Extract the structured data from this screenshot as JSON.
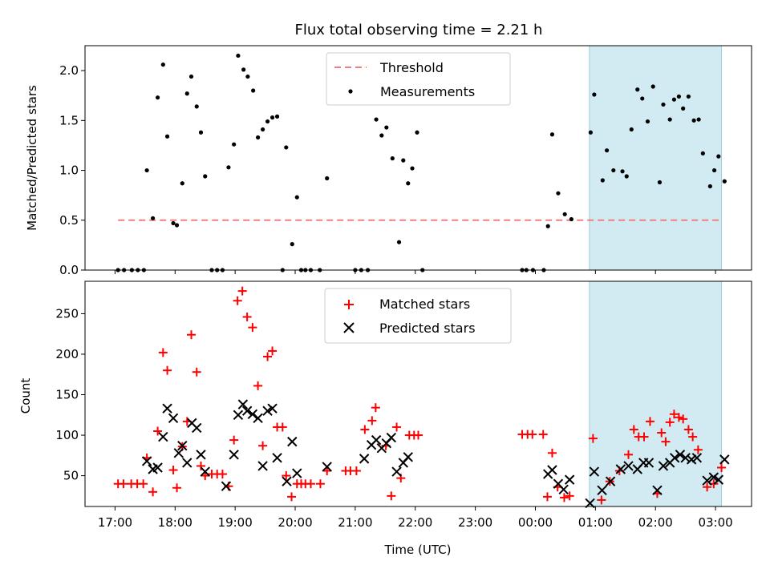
{
  "figure": {
    "title": "Flux total observing time = 2.21 h"
  },
  "chart_data": [
    {
      "type": "scatter",
      "panel": "top",
      "ylabel": "Matched/Predicted stars",
      "xlabel": "",
      "xlim": [
        -0.5,
        10.6
      ],
      "ylim": [
        0,
        2.25
      ],
      "yticks": [
        0.0,
        0.5,
        1.0,
        1.5,
        2.0
      ],
      "ytick_labels": [
        "0.0",
        "0.5",
        "1.0",
        "1.5",
        "2.0"
      ],
      "highlight_span": [
        7.9,
        10.1
      ],
      "threshold": {
        "name": "Threshold",
        "value": 0.5,
        "x_range": [
          0.05,
          10.1
        ],
        "color": "#f08080"
      },
      "legend": {
        "position": "top-center",
        "entries": [
          "Threshold",
          "Measurements"
        ]
      },
      "series": [
        {
          "name": "Measurements",
          "color": "#000000",
          "marker": "dot",
          "points": [
            [
              0.05,
              0
            ],
            [
              0.15,
              0
            ],
            [
              0.28,
              0
            ],
            [
              0.38,
              0
            ],
            [
              0.48,
              0
            ],
            [
              0.53,
              1.0
            ],
            [
              0.63,
              0.52
            ],
            [
              0.71,
              1.73
            ],
            [
              0.8,
              2.06
            ],
            [
              0.87,
              1.34
            ],
            [
              0.97,
              0.47
            ],
            [
              1.03,
              0.45
            ],
            [
              1.12,
              0.87
            ],
            [
              1.2,
              1.77
            ],
            [
              1.27,
              1.94
            ],
            [
              1.36,
              1.64
            ],
            [
              1.43,
              1.38
            ],
            [
              1.5,
              0.94
            ],
            [
              1.61,
              0
            ],
            [
              1.7,
              0
            ],
            [
              1.79,
              0
            ],
            [
              1.89,
              1.03
            ],
            [
              1.98,
              1.26
            ],
            [
              2.05,
              2.15
            ],
            [
              2.14,
              2.01
            ],
            [
              2.21,
              1.94
            ],
            [
              2.3,
              1.8
            ],
            [
              2.38,
              1.33
            ],
            [
              2.46,
              1.41
            ],
            [
              2.54,
              1.49
            ],
            [
              2.62,
              1.53
            ],
            [
              2.7,
              1.54
            ],
            [
              2.79,
              0
            ],
            [
              2.85,
              1.23
            ],
            [
              2.95,
              0.26
            ],
            [
              3.03,
              0.73
            ],
            [
              3.1,
              0
            ],
            [
              3.17,
              0
            ],
            [
              3.26,
              0
            ],
            [
              3.41,
              0
            ],
            [
              3.53,
              0.92
            ],
            [
              4.0,
              0
            ],
            [
              4.1,
              0
            ],
            [
              4.21,
              0
            ],
            [
              4.35,
              1.51
            ],
            [
              4.44,
              1.35
            ],
            [
              4.52,
              1.43
            ],
            [
              4.62,
              1.12
            ],
            [
              4.73,
              0.28
            ],
            [
              4.8,
              1.1
            ],
            [
              4.88,
              0.87
            ],
            [
              4.95,
              1.02
            ],
            [
              5.03,
              1.38
            ],
            [
              5.12,
              0
            ],
            [
              6.78,
              0
            ],
            [
              6.85,
              0
            ],
            [
              6.96,
              0
            ],
            [
              7.14,
              0
            ],
            [
              7.21,
              0.44
            ],
            [
              7.28,
              1.36
            ],
            [
              7.38,
              0.77
            ],
            [
              7.49,
              0.56
            ],
            [
              7.6,
              0.51
            ],
            [
              7.92,
              1.38
            ],
            [
              7.98,
              1.76
            ],
            [
              8.12,
              0.9
            ],
            [
              8.19,
              1.2
            ],
            [
              8.3,
              1.0
            ],
            [
              8.45,
              0.99
            ],
            [
              8.52,
              0.94
            ],
            [
              8.6,
              1.41
            ],
            [
              8.7,
              1.81
            ],
            [
              8.78,
              1.72
            ],
            [
              8.87,
              1.49
            ],
            [
              8.96,
              1.84
            ],
            [
              9.07,
              0.88
            ],
            [
              9.13,
              1.66
            ],
            [
              9.24,
              1.51
            ],
            [
              9.31,
              1.71
            ],
            [
              9.39,
              1.74
            ],
            [
              9.46,
              1.62
            ],
            [
              9.55,
              1.74
            ],
            [
              9.64,
              1.5
            ],
            [
              9.72,
              1.51
            ],
            [
              9.79,
              1.17
            ],
            [
              9.91,
              0.84
            ],
            [
              9.98,
              1.0
            ],
            [
              10.05,
              1.14
            ],
            [
              10.15,
              0.89
            ]
          ]
        }
      ]
    },
    {
      "type": "scatter",
      "panel": "bottom",
      "xlabel": "Time (UTC)",
      "ylabel": "Count",
      "xlim": [
        -0.5,
        10.6
      ],
      "ylim": [
        12,
        290
      ],
      "yticks": [
        50,
        100,
        150,
        200,
        250
      ],
      "ytick_labels": [
        "50",
        "100",
        "150",
        "200",
        "250"
      ],
      "xticks": [
        0,
        1,
        2,
        3,
        4,
        5,
        6,
        7,
        8,
        9,
        10
      ],
      "xtick_labels": [
        "17:00",
        "18:00",
        "19:00",
        "20:00",
        "21:00",
        "22:00",
        "23:00",
        "00:00",
        "01:00",
        "02:00",
        "03:00"
      ],
      "highlight_span": [
        7.9,
        10.1
      ],
      "legend": {
        "position": "top-center",
        "entries": [
          "Matched stars",
          "Predicted stars"
        ]
      },
      "series": [
        {
          "name": "Matched stars",
          "color": "#ff0000",
          "marker": "plus",
          "points": [
            [
              0.05,
              40
            ],
            [
              0.14,
              40
            ],
            [
              0.27,
              40
            ],
            [
              0.37,
              40
            ],
            [
              0.47,
              40
            ],
            [
              0.53,
              72
            ],
            [
              0.63,
              30
            ],
            [
              0.71,
              105
            ],
            [
              0.8,
              202
            ],
            [
              0.87,
              180
            ],
            [
              0.97,
              57
            ],
            [
              1.03,
              35
            ],
            [
              1.12,
              86
            ],
            [
              1.2,
              117
            ],
            [
              1.27,
              224
            ],
            [
              1.36,
              178
            ],
            [
              1.43,
              62
            ],
            [
              1.5,
              50
            ],
            [
              1.61,
              52
            ],
            [
              1.7,
              52
            ],
            [
              1.79,
              52
            ],
            [
              1.89,
              37
            ],
            [
              1.98,
              94
            ],
            [
              2.04,
              266
            ],
            [
              2.12,
              278
            ],
            [
              2.2,
              246
            ],
            [
              2.29,
              233
            ],
            [
              2.38,
              161
            ],
            [
              2.46,
              87
            ],
            [
              2.54,
              197
            ],
            [
              2.62,
              204
            ],
            [
              2.7,
              110
            ],
            [
              2.79,
              110
            ],
            [
              2.85,
              50
            ],
            [
              2.94,
              24
            ],
            [
              3.03,
              40
            ],
            [
              3.1,
              40
            ],
            [
              3.17,
              40
            ],
            [
              3.26,
              40
            ],
            [
              3.42,
              40
            ],
            [
              3.53,
              56
            ],
            [
              3.84,
              56
            ],
            [
              3.92,
              56
            ],
            [
              4.02,
              56
            ],
            [
              4.16,
              107
            ],
            [
              4.28,
              118
            ],
            [
              4.34,
              134
            ],
            [
              4.51,
              87
            ],
            [
              4.6,
              25
            ],
            [
              4.69,
              110
            ],
            [
              4.76,
              47
            ],
            [
              4.9,
              100
            ],
            [
              4.98,
              100
            ],
            [
              5.05,
              100
            ],
            [
              6.78,
              101
            ],
            [
              6.87,
              101
            ],
            [
              6.95,
              101
            ],
            [
              7.13,
              101
            ],
            [
              7.2,
              24
            ],
            [
              7.28,
              78
            ],
            [
              7.37,
              36
            ],
            [
              7.48,
              23
            ],
            [
              7.57,
              25
            ],
            [
              7.96,
              96
            ],
            [
              8.1,
              20
            ],
            [
              8.24,
              43
            ],
            [
              8.4,
              56
            ],
            [
              8.55,
              76
            ],
            [
              8.64,
              107
            ],
            [
              8.72,
              98
            ],
            [
              8.81,
              98
            ],
            [
              8.91,
              117
            ],
            [
              9.03,
              28
            ],
            [
              9.1,
              103
            ],
            [
              9.17,
              92
            ],
            [
              9.24,
              116
            ],
            [
              9.31,
              126
            ],
            [
              9.39,
              122
            ],
            [
              9.46,
              120
            ],
            [
              9.55,
              107
            ],
            [
              9.62,
              98
            ],
            [
              9.71,
              82
            ],
            [
              9.86,
              36
            ],
            [
              9.97,
              40
            ],
            [
              10.1,
              60
            ]
          ]
        },
        {
          "name": "Predicted stars",
          "color": "#000000",
          "marker": "x",
          "points": [
            [
              0.53,
              68
            ],
            [
              0.63,
              58
            ],
            [
              0.71,
              60
            ],
            [
              0.8,
              98
            ],
            [
              0.87,
              133
            ],
            [
              0.97,
              121
            ],
            [
              1.06,
              78
            ],
            [
              1.12,
              87
            ],
            [
              1.2,
              66
            ],
            [
              1.28,
              115
            ],
            [
              1.36,
              109
            ],
            [
              1.43,
              76
            ],
            [
              1.5,
              55
            ],
            [
              1.85,
              37
            ],
            [
              1.98,
              76
            ],
            [
              2.05,
              125
            ],
            [
              2.13,
              138
            ],
            [
              2.2,
              130
            ],
            [
              2.29,
              126
            ],
            [
              2.38,
              121
            ],
            [
              2.46,
              62
            ],
            [
              2.54,
              130
            ],
            [
              2.62,
              133
            ],
            [
              2.7,
              72
            ],
            [
              2.86,
              43
            ],
            [
              2.95,
              92
            ],
            [
              3.03,
              53
            ],
            [
              3.53,
              61
            ],
            [
              4.15,
              71
            ],
            [
              4.27,
              88
            ],
            [
              4.35,
              94
            ],
            [
              4.44,
              84
            ],
            [
              4.52,
              90
            ],
            [
              4.6,
              97
            ],
            [
              4.69,
              55
            ],
            [
              4.8,
              66
            ],
            [
              4.88,
              73
            ],
            [
              7.21,
              52
            ],
            [
              7.28,
              57
            ],
            [
              7.38,
              40
            ],
            [
              7.47,
              33
            ],
            [
              7.57,
              45
            ],
            [
              7.91,
              16
            ],
            [
              7.98,
              55
            ],
            [
              8.11,
              32
            ],
            [
              8.25,
              43
            ],
            [
              8.42,
              58
            ],
            [
              8.55,
              62
            ],
            [
              8.7,
              58
            ],
            [
              8.8,
              66
            ],
            [
              8.89,
              66
            ],
            [
              9.03,
              32
            ],
            [
              9.13,
              62
            ],
            [
              9.24,
              66
            ],
            [
              9.32,
              72
            ],
            [
              9.41,
              76
            ],
            [
              9.5,
              72
            ],
            [
              9.6,
              70
            ],
            [
              9.69,
              72
            ],
            [
              9.86,
              44
            ],
            [
              9.97,
              48
            ],
            [
              10.05,
              45
            ],
            [
              10.15,
              70
            ]
          ]
        }
      ]
    }
  ]
}
